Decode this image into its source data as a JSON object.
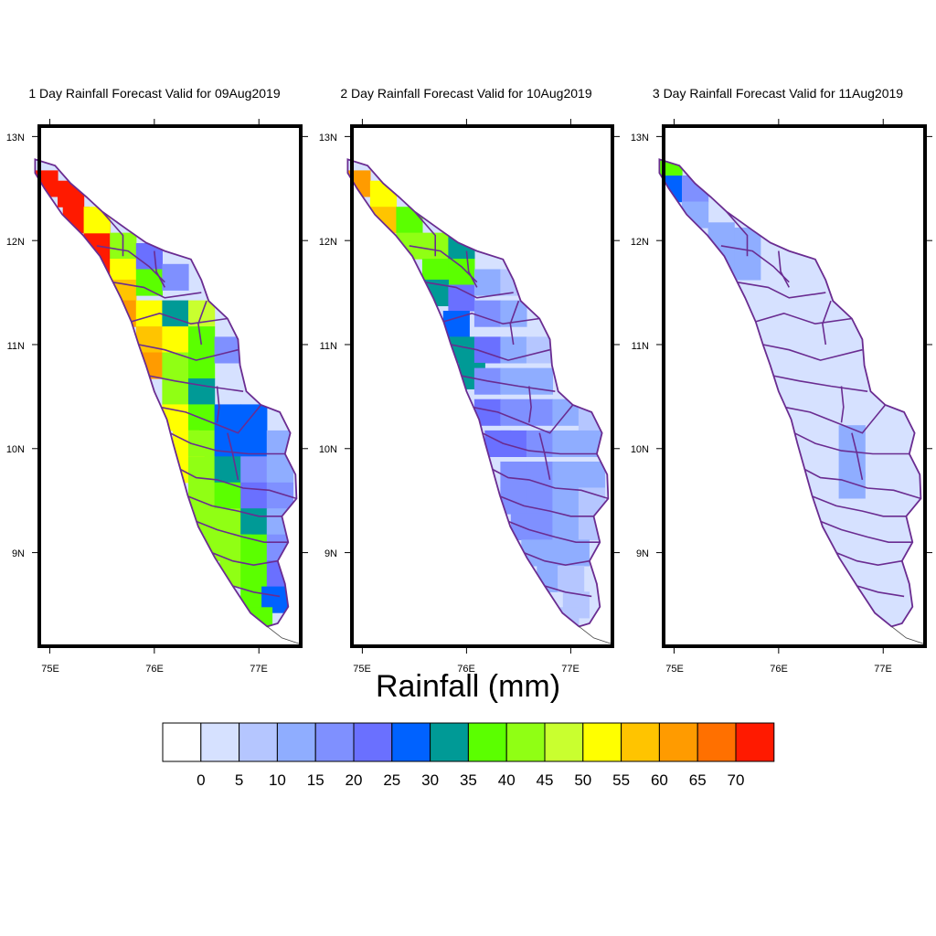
{
  "panels": [
    {
      "title": "1 Day Rainfall Forecast Valid for 09Aug2019",
      "grid": [
        {
          "lon": 74.95,
          "lat": 12.55,
          "v": 72
        },
        {
          "lon": 75.2,
          "lat": 12.45,
          "v": 72
        },
        {
          "lon": 75.25,
          "lat": 12.2,
          "v": 72
        },
        {
          "lon": 75.45,
          "lat": 12.05,
          "v": 72
        },
        {
          "lon": 75.45,
          "lat": 11.8,
          "v": 72
        },
        {
          "lon": 75.45,
          "lat": 12.2,
          "v": 52
        },
        {
          "lon": 75.7,
          "lat": 11.95,
          "v": 42
        },
        {
          "lon": 75.7,
          "lat": 11.7,
          "v": 52
        },
        {
          "lon": 75.7,
          "lat": 11.5,
          "v": 57
        },
        {
          "lon": 75.7,
          "lat": 11.3,
          "v": 62
        },
        {
          "lon": 75.95,
          "lat": 11.85,
          "v": 22
        },
        {
          "lon": 75.95,
          "lat": 11.6,
          "v": 37
        },
        {
          "lon": 76.2,
          "lat": 11.65,
          "v": 17
        },
        {
          "lon": 75.95,
          "lat": 11.3,
          "v": 52
        },
        {
          "lon": 75.95,
          "lat": 11.05,
          "v": 57
        },
        {
          "lon": 76.2,
          "lat": 11.3,
          "v": 32
        },
        {
          "lon": 76.2,
          "lat": 11.05,
          "v": 52
        },
        {
          "lon": 76.45,
          "lat": 11.3,
          "v": 47
        },
        {
          "lon": 75.95,
          "lat": 10.8,
          "v": 62
        },
        {
          "lon": 76.2,
          "lat": 10.8,
          "v": 42
        },
        {
          "lon": 76.45,
          "lat": 11.05,
          "v": 37
        },
        {
          "lon": 76.45,
          "lat": 10.8,
          "v": 37
        },
        {
          "lon": 76.7,
          "lat": 10.95,
          "v": 17
        },
        {
          "lon": 76.2,
          "lat": 10.55,
          "v": 42
        },
        {
          "lon": 76.45,
          "lat": 10.55,
          "v": 32
        },
        {
          "lon": 76.2,
          "lat": 10.3,
          "v": 52
        },
        {
          "lon": 76.45,
          "lat": 10.3,
          "v": 37
        },
        {
          "lon": 76.7,
          "lat": 10.3,
          "v": 27
        },
        {
          "lon": 76.95,
          "lat": 10.3,
          "v": 27
        },
        {
          "lon": 76.3,
          "lat": 10.05,
          "v": 52
        },
        {
          "lon": 76.45,
          "lat": 10.05,
          "v": 42
        },
        {
          "lon": 76.7,
          "lat": 10.05,
          "v": 27
        },
        {
          "lon": 76.95,
          "lat": 10.05,
          "v": 27
        },
        {
          "lon": 77.2,
          "lat": 10.05,
          "v": 12
        },
        {
          "lon": 76.35,
          "lat": 9.8,
          "v": 52
        },
        {
          "lon": 76.45,
          "lat": 9.8,
          "v": 42
        },
        {
          "lon": 76.7,
          "lat": 9.8,
          "v": 32
        },
        {
          "lon": 76.95,
          "lat": 9.8,
          "v": 17
        },
        {
          "lon": 77.2,
          "lat": 9.8,
          "v": 12
        },
        {
          "lon": 76.45,
          "lat": 9.55,
          "v": 42
        },
        {
          "lon": 76.7,
          "lat": 9.55,
          "v": 37
        },
        {
          "lon": 76.95,
          "lat": 9.55,
          "v": 22
        },
        {
          "lon": 77.2,
          "lat": 9.55,
          "v": 17
        },
        {
          "lon": 76.5,
          "lat": 9.3,
          "v": 42
        },
        {
          "lon": 76.7,
          "lat": 9.3,
          "v": 42
        },
        {
          "lon": 76.95,
          "lat": 9.3,
          "v": 32
        },
        {
          "lon": 77.2,
          "lat": 9.3,
          "v": 12
        },
        {
          "lon": 76.6,
          "lat": 9.05,
          "v": 42
        },
        {
          "lon": 76.8,
          "lat": 9.05,
          "v": 42
        },
        {
          "lon": 76.95,
          "lat": 9.05,
          "v": 37
        },
        {
          "lon": 77.2,
          "lat": 9.05,
          "v": 17
        },
        {
          "lon": 76.75,
          "lat": 8.8,
          "v": 42
        },
        {
          "lon": 76.95,
          "lat": 8.8,
          "v": 37
        },
        {
          "lon": 77.2,
          "lat": 8.8,
          "v": 22
        },
        {
          "lon": 76.95,
          "lat": 8.55,
          "v": 37
        },
        {
          "lon": 77.15,
          "lat": 8.55,
          "v": 27
        },
        {
          "lon": 77.0,
          "lat": 8.35,
          "v": 37
        }
      ]
    },
    {
      "title": "2 Day Rainfall Forecast Valid for 10Aug2019",
      "grid": [
        {
          "lon": 74.95,
          "lat": 12.55,
          "v": 62
        },
        {
          "lon": 75.2,
          "lat": 12.45,
          "v": 52
        },
        {
          "lon": 75.2,
          "lat": 12.2,
          "v": 57
        },
        {
          "lon": 75.45,
          "lat": 12.2,
          "v": 37
        },
        {
          "lon": 75.45,
          "lat": 11.95,
          "v": 42
        },
        {
          "lon": 75.7,
          "lat": 11.95,
          "v": 42
        },
        {
          "lon": 75.7,
          "lat": 11.7,
          "v": 37
        },
        {
          "lon": 75.95,
          "lat": 11.95,
          "v": 32
        },
        {
          "lon": 75.95,
          "lat": 11.7,
          "v": 37
        },
        {
          "lon": 75.7,
          "lat": 11.5,
          "v": 32
        },
        {
          "lon": 75.95,
          "lat": 11.45,
          "v": 22
        },
        {
          "lon": 76.2,
          "lat": 11.6,
          "v": 12
        },
        {
          "lon": 76.45,
          "lat": 11.6,
          "v": 7
        },
        {
          "lon": 75.9,
          "lat": 11.2,
          "v": 27
        },
        {
          "lon": 76.2,
          "lat": 11.3,
          "v": 17
        },
        {
          "lon": 76.45,
          "lat": 11.3,
          "v": 12
        },
        {
          "lon": 75.95,
          "lat": 10.95,
          "v": 32
        },
        {
          "lon": 76.2,
          "lat": 10.95,
          "v": 22
        },
        {
          "lon": 76.45,
          "lat": 10.95,
          "v": 12
        },
        {
          "lon": 76.7,
          "lat": 10.95,
          "v": 7
        },
        {
          "lon": 76.05,
          "lat": 10.7,
          "v": 32
        },
        {
          "lon": 76.2,
          "lat": 10.65,
          "v": 17
        },
        {
          "lon": 76.45,
          "lat": 10.65,
          "v": 12
        },
        {
          "lon": 76.7,
          "lat": 10.65,
          "v": 12
        },
        {
          "lon": 76.2,
          "lat": 10.35,
          "v": 22
        },
        {
          "lon": 76.45,
          "lat": 10.35,
          "v": 17
        },
        {
          "lon": 76.7,
          "lat": 10.35,
          "v": 17
        },
        {
          "lon": 76.95,
          "lat": 10.35,
          "v": 12
        },
        {
          "lon": 77.2,
          "lat": 10.3,
          "v": 7
        },
        {
          "lon": 76.3,
          "lat": 10.05,
          "v": 22
        },
        {
          "lon": 76.45,
          "lat": 10.05,
          "v": 22
        },
        {
          "lon": 76.7,
          "lat": 10.05,
          "v": 17
        },
        {
          "lon": 76.95,
          "lat": 10.05,
          "v": 12
        },
        {
          "lon": 77.2,
          "lat": 10.05,
          "v": 12
        },
        {
          "lon": 76.45,
          "lat": 9.75,
          "v": 17
        },
        {
          "lon": 76.7,
          "lat": 9.75,
          "v": 17
        },
        {
          "lon": 76.95,
          "lat": 9.75,
          "v": 12
        },
        {
          "lon": 77.2,
          "lat": 9.75,
          "v": 12
        },
        {
          "lon": 76.45,
          "lat": 9.5,
          "v": 17
        },
        {
          "lon": 76.7,
          "lat": 9.5,
          "v": 17
        },
        {
          "lon": 76.95,
          "lat": 9.5,
          "v": 12
        },
        {
          "lon": 77.2,
          "lat": 9.5,
          "v": 7
        },
        {
          "lon": 76.55,
          "lat": 9.25,
          "v": 17
        },
        {
          "lon": 76.75,
          "lat": 9.25,
          "v": 17
        },
        {
          "lon": 76.95,
          "lat": 9.25,
          "v": 12
        },
        {
          "lon": 77.2,
          "lat": 9.25,
          "v": 7
        },
        {
          "lon": 76.65,
          "lat": 9.0,
          "v": 12
        },
        {
          "lon": 76.85,
          "lat": 9.0,
          "v": 12
        },
        {
          "lon": 77.05,
          "lat": 9.0,
          "v": 12
        },
        {
          "lon": 76.8,
          "lat": 8.75,
          "v": 12
        },
        {
          "lon": 77.0,
          "lat": 8.75,
          "v": 7
        },
        {
          "lon": 77.05,
          "lat": 8.5,
          "v": 7
        },
        {
          "lon": 76.95,
          "lat": 8.35,
          "v": 7
        }
      ]
    },
    {
      "title": "3 Day Rainfall Forecast Valid for 11Aug2019",
      "grid": [
        {
          "lon": 74.95,
          "lat": 12.7,
          "v": 37
        },
        {
          "lon": 75.0,
          "lat": 12.5,
          "v": 27
        },
        {
          "lon": 75.2,
          "lat": 12.5,
          "v": 17
        },
        {
          "lon": 75.45,
          "lat": 12.05,
          "v": 12
        },
        {
          "lon": 75.2,
          "lat": 12.25,
          "v": 12
        },
        {
          "lon": 75.7,
          "lat": 12.0,
          "v": 12
        },
        {
          "lon": 75.45,
          "lat": 11.8,
          "v": 12
        },
        {
          "lon": 75.7,
          "lat": 11.75,
          "v": 12
        },
        {
          "lon": 76.7,
          "lat": 10.1,
          "v": 12
        },
        {
          "lon": 76.7,
          "lat": 9.85,
          "v": 12
        },
        {
          "lon": 76.7,
          "lat": 9.65,
          "v": 12
        }
      ]
    }
  ],
  "x_axis": {
    "ticks": [
      75,
      76,
      77
    ],
    "tick_labels": [
      "75E",
      "76E",
      "77E"
    ],
    "range": [
      74.9,
      77.4
    ]
  },
  "y_axis": {
    "ticks": [
      9,
      10,
      11,
      12,
      13
    ],
    "tick_labels": [
      "9N",
      "10N",
      "11N",
      "12N",
      "13N"
    ],
    "range": [
      8.1,
      13.1
    ]
  },
  "colorbar": {
    "title": "Rainfall (mm)",
    "labels": [
      "0",
      "5",
      "10",
      "15",
      "20",
      "25",
      "30",
      "35",
      "40",
      "45",
      "50",
      "55",
      "60",
      "65",
      "70"
    ],
    "levels": [
      0,
      5,
      10,
      15,
      20,
      25,
      30,
      35,
      40,
      45,
      50,
      55,
      60,
      65,
      70
    ],
    "colors": [
      "#ffffff",
      "#d6e1ff",
      "#b5c6ff",
      "#8fadff",
      "#7f90ff",
      "#6a70ff",
      "#0062ff",
      "#009a96",
      "#5bff00",
      "#90ff14",
      "#c9ff2f",
      "#ffff00",
      "#ffc400",
      "#ff9b00",
      "#ff7000",
      "#ff1a00"
    ]
  },
  "colors": {
    "outline": "#6a2c91",
    "frame": "#000000",
    "land_default": "#d6e1ff"
  }
}
